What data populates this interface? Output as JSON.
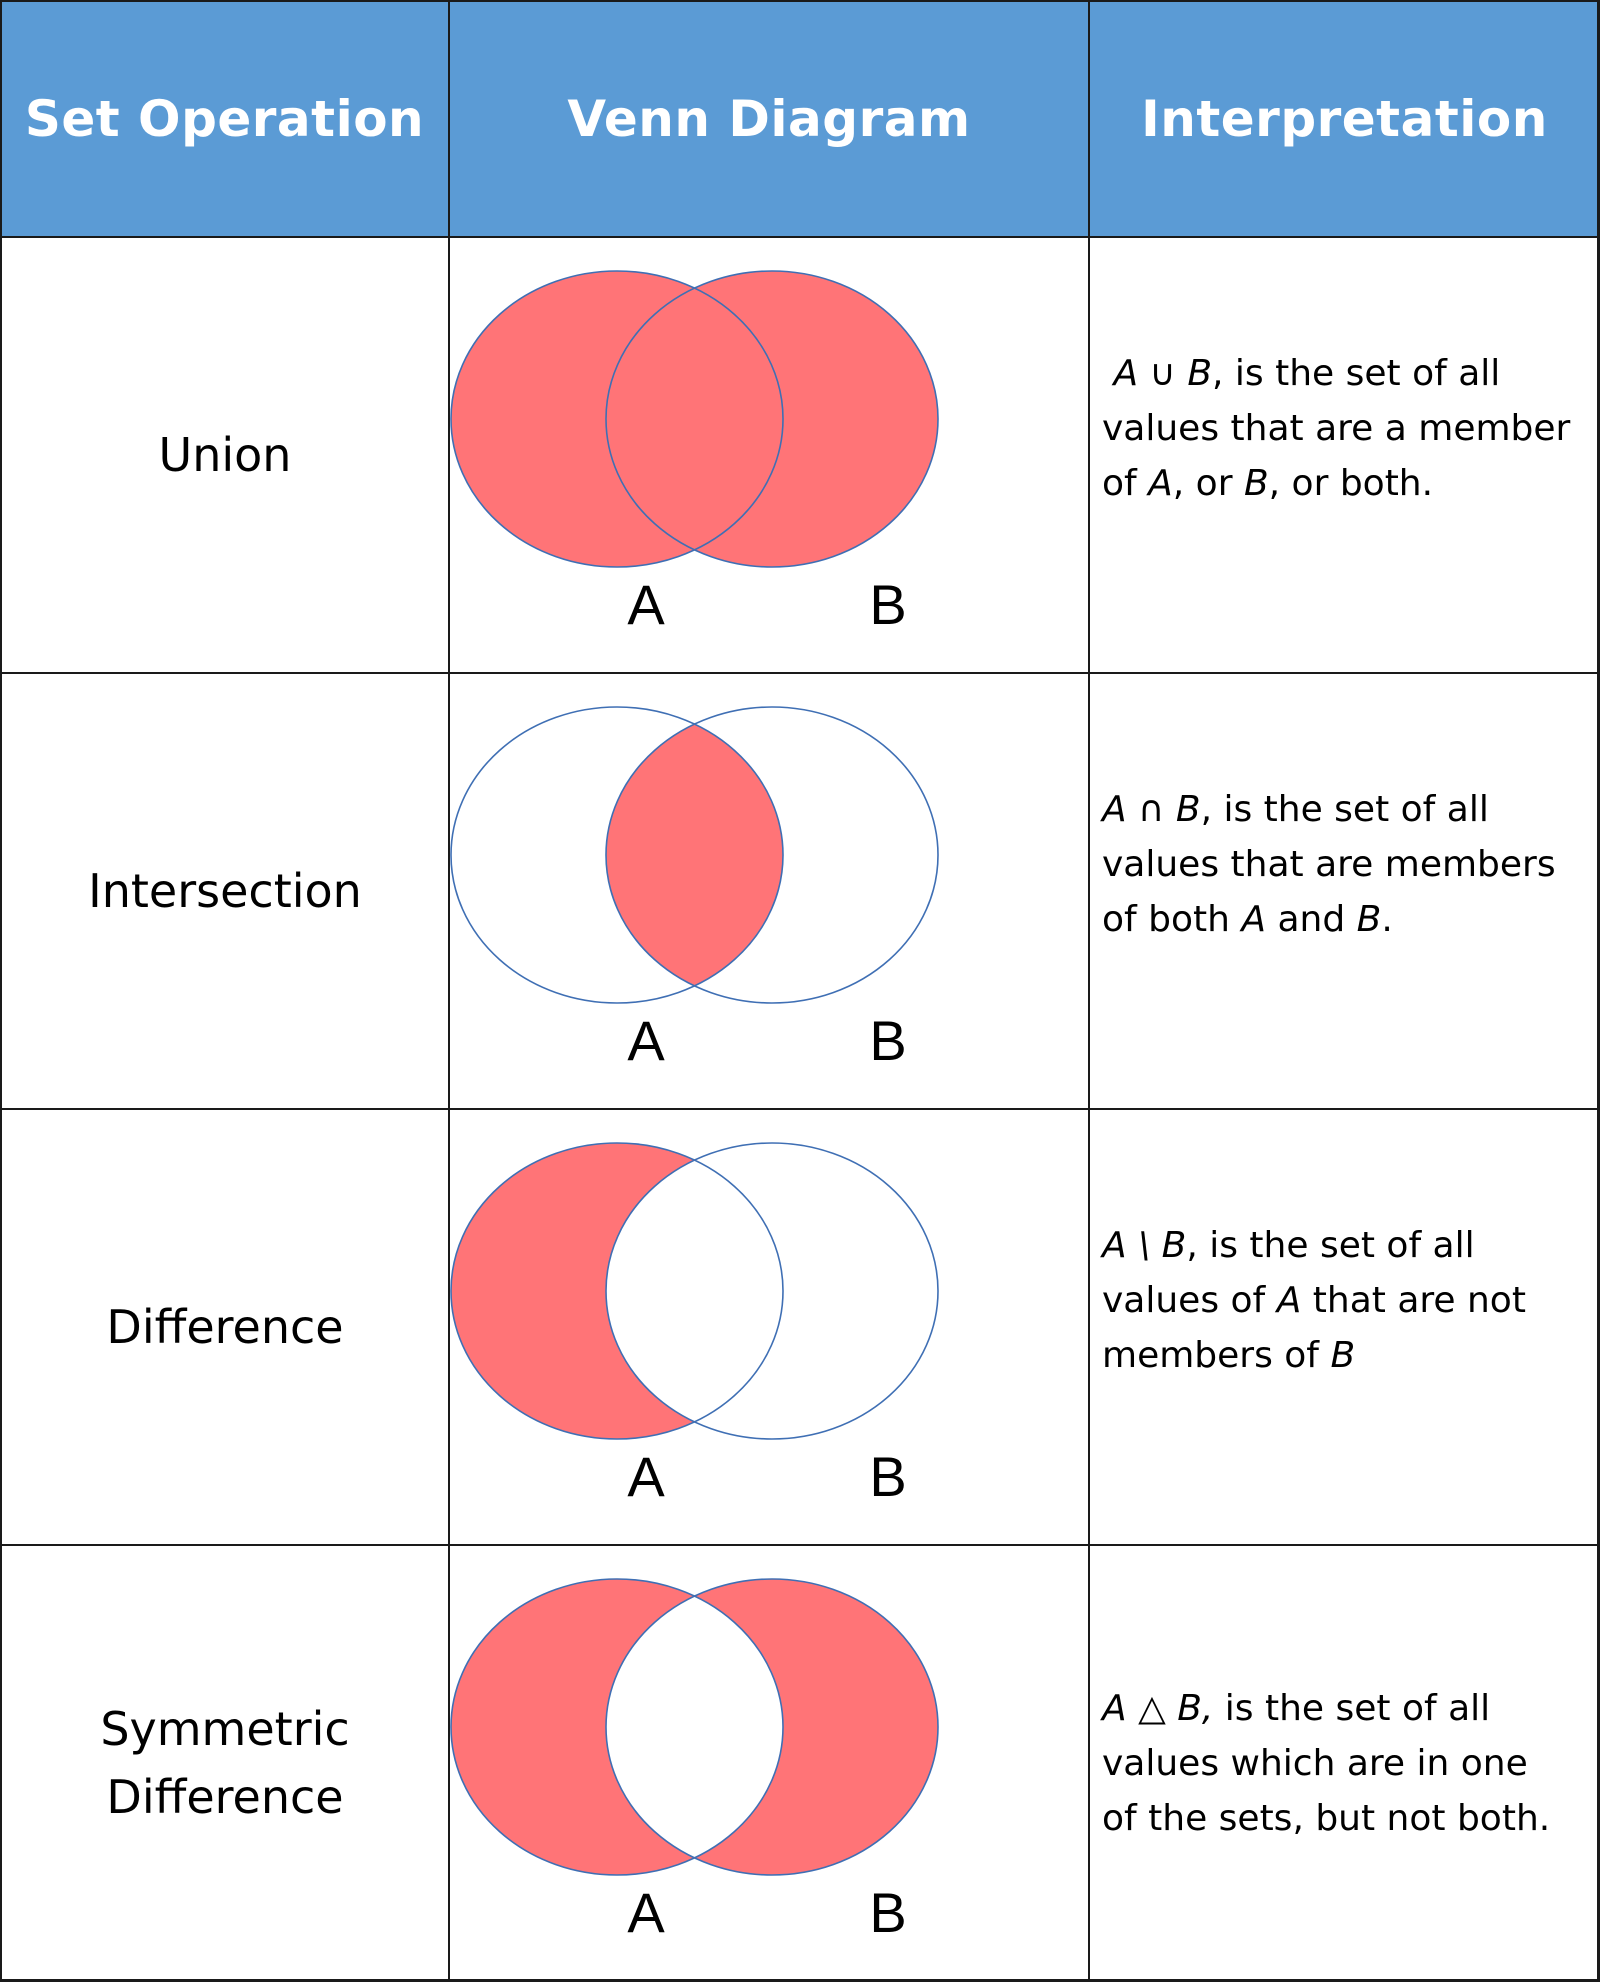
{
  "headers": {
    "operation": "Set Operation",
    "venn": "Venn Diagram",
    "interpretation": "Interpretation"
  },
  "colors": {
    "header_bg": "#5b9bd5",
    "fill": "#ff7477",
    "outline": "#3f6fb4"
  },
  "rows": [
    {
      "operation": "Union",
      "labels": {
        "a": "A",
        "b": "B"
      },
      "shaded": "union",
      "interp": {
        "symbol_text": "A ∪ B",
        "line1_rest": ", is the set of all",
        "line2": "values that are a member",
        "line3_pre": "of ",
        "line3_a": "A",
        "line3_mid": ", or ",
        "line3_b": "B",
        "line3_post": ", or both."
      }
    },
    {
      "operation": "Intersection",
      "labels": {
        "a": "A",
        "b": "B"
      },
      "shaded": "intersection",
      "interp": {
        "symbol_text": "A ∩ B",
        "line1_rest": ", is the set of all",
        "line2": "values that are members",
        "line3_pre": "of both ",
        "line3_a": "A",
        "line3_mid": " and ",
        "line3_b": "B",
        "line3_post": "."
      }
    },
    {
      "operation": "Difference",
      "labels": {
        "a": "A",
        "b": "B"
      },
      "shaded": "difference",
      "interp": {
        "symbol_text": "A \\ B",
        "line1_rest": ", is the set of all",
        "line2_pre": "values of ",
        "line2_a": "A",
        "line2_post": " that are not",
        "line3_pre": "members of ",
        "line3_b": "B"
      }
    },
    {
      "operation_line1": "Symmetric",
      "operation_line2": "Difference",
      "labels": {
        "a": "A",
        "b": "B"
      },
      "shaded": "symmetric",
      "interp": {
        "symbol_text": "A △ B,",
        "line1_rest": " is the set of all",
        "line2": "values which are in one",
        "line3": "of the sets, but not both."
      }
    }
  ]
}
